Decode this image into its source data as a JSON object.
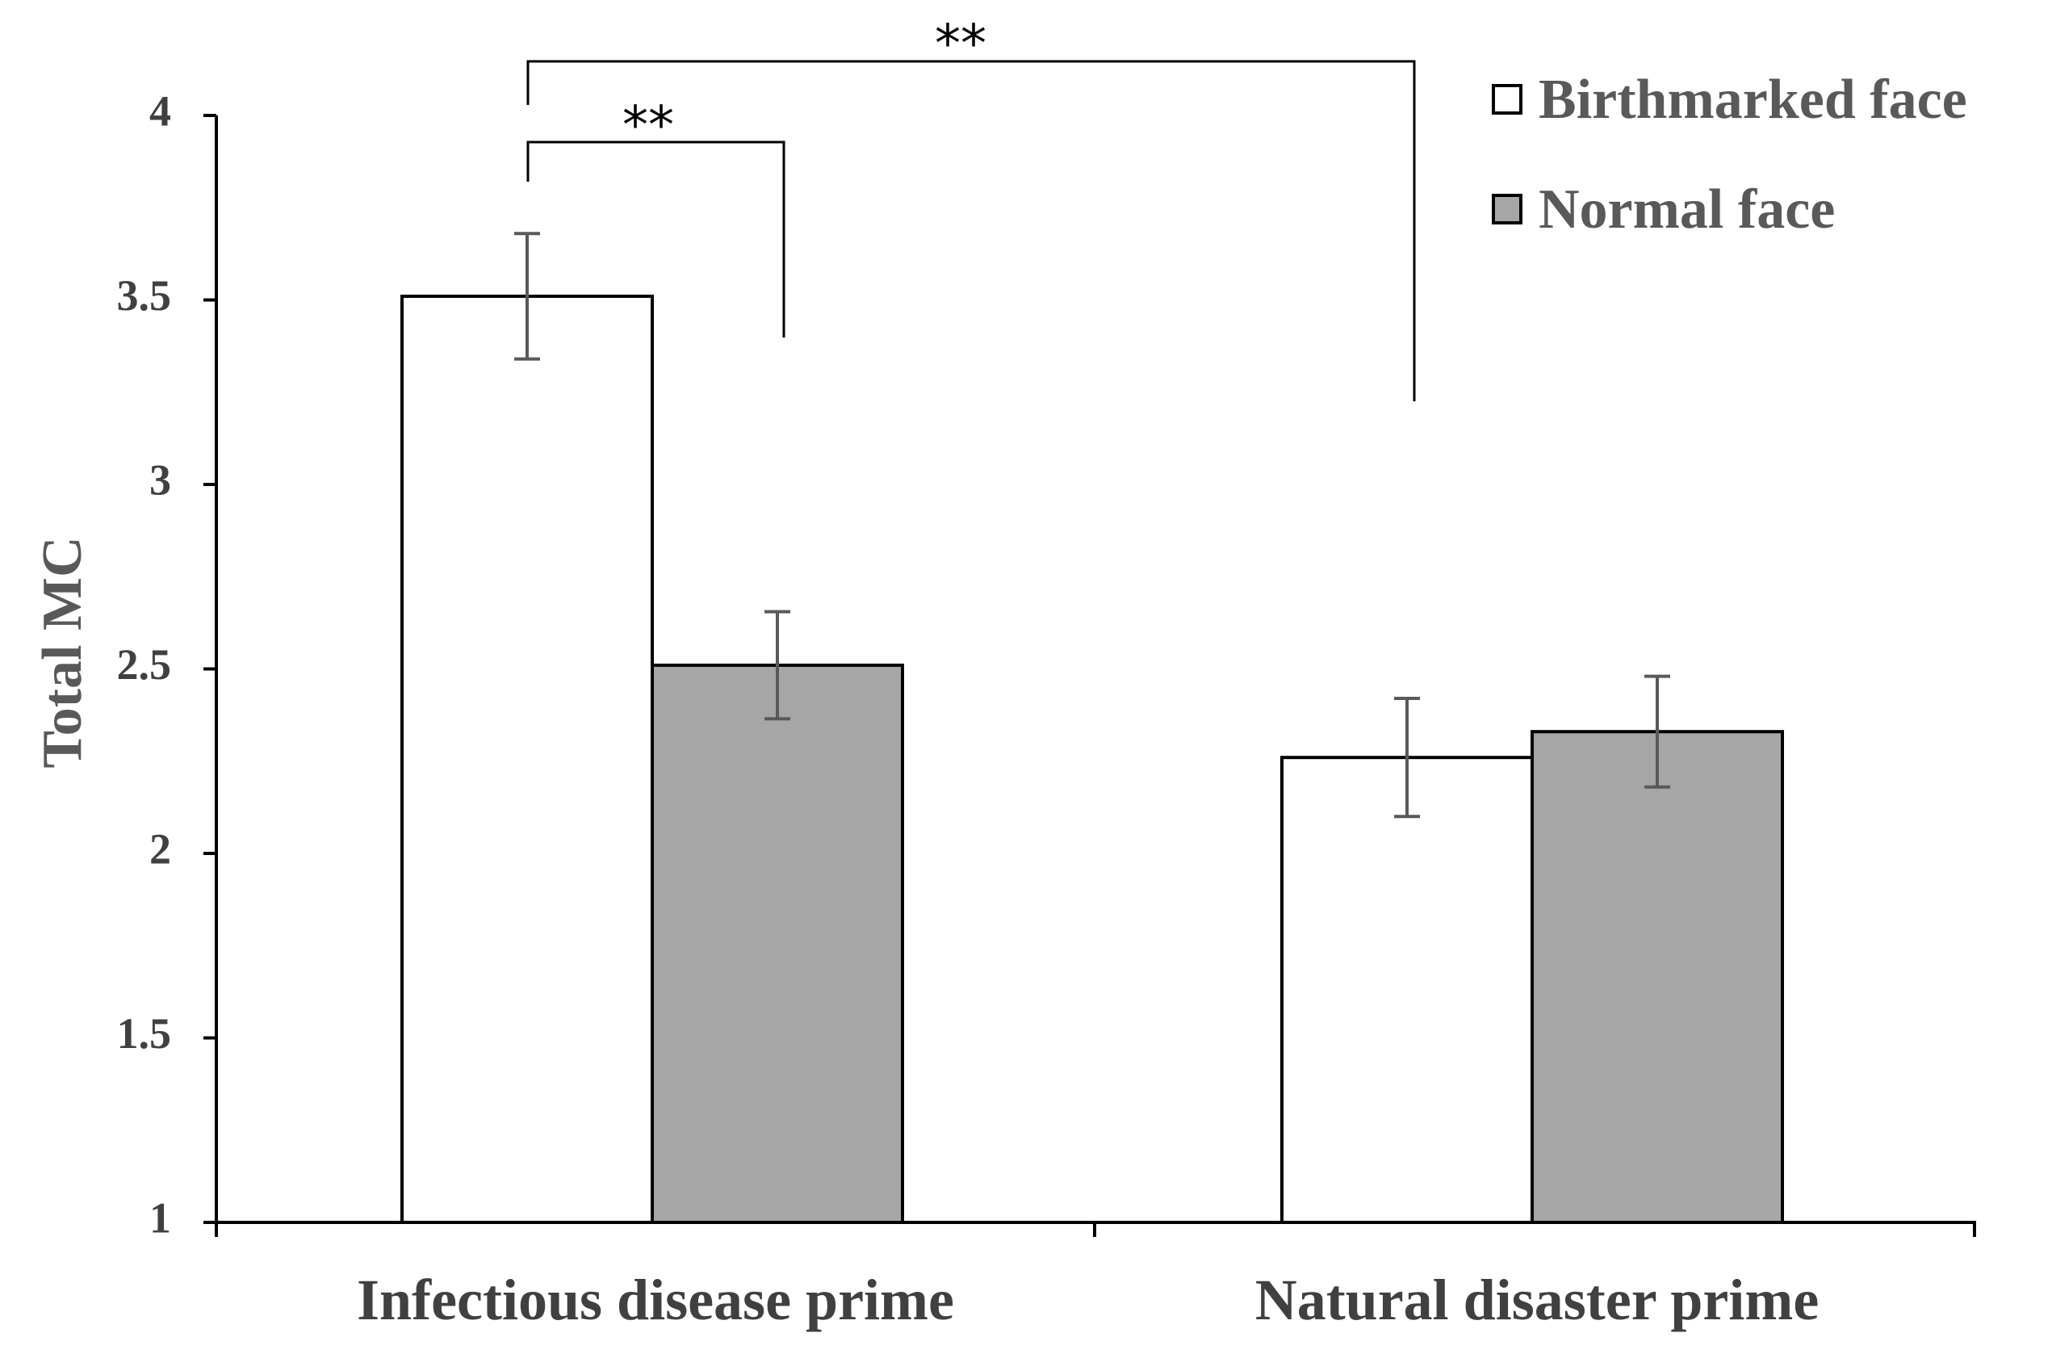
{
  "chart_data": {
    "type": "bar",
    "title": "",
    "xlabel": "",
    "ylabel": "Total MC",
    "ylim": [
      1,
      4
    ],
    "yticks": [
      "1",
      "1.5",
      "2",
      "2.5",
      "3",
      "3.5",
      "4"
    ],
    "categories": [
      "Infectious disease prime",
      "Natural disaster prime"
    ],
    "series": [
      {
        "name": "Birthmarked face",
        "color": "#ffffff",
        "values": [
          3.51,
          2.26
        ],
        "errors": [
          0.17,
          0.16
        ]
      },
      {
        "name": "Normal face",
        "color": "#a6a6a6",
        "values": [
          2.51,
          2.33
        ],
        "errors": [
          0.145,
          0.15
        ]
      }
    ],
    "legend_position": "top-right",
    "annotations": [
      {
        "label": "**",
        "from": "Infectious disease prime / Birthmarked face",
        "to": "Infectious disease prime / Normal face"
      },
      {
        "label": "**",
        "from": "Infectious disease prime / Birthmarked face",
        "to": "Natural disaster prime / Birthmarked face"
      }
    ]
  }
}
